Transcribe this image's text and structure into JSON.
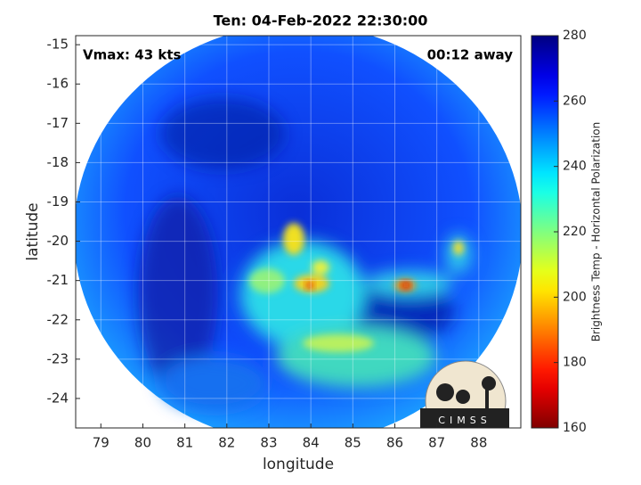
{
  "chart_data": {
    "type": "image",
    "title": "Ten: 04-Feb-2022 22:30:00",
    "annotations": [
      "Vmax: 43 kts",
      "00:12 away"
    ],
    "x_label": "longitude",
    "y_label": "latitude",
    "xlim": [
      78.4,
      89.0
    ],
    "xticks": [
      79,
      80,
      81,
      82,
      83,
      84,
      85,
      86,
      87,
      88
    ],
    "ylim": [
      -24.75,
      -14.77
    ],
    "yticks": [
      -15,
      -16,
      -17,
      -18,
      -19,
      -20,
      -21,
      -22,
      -23,
      -24
    ],
    "grid": true,
    "colorbar": {
      "label": "Brightness Temp - Horizontal Polarization",
      "lim": [
        160,
        280
      ],
      "ticks": [
        160,
        180,
        200,
        220,
        240,
        260,
        280
      ],
      "colormap": "jet",
      "reversed": true
    },
    "logo": "CIMSS"
  }
}
